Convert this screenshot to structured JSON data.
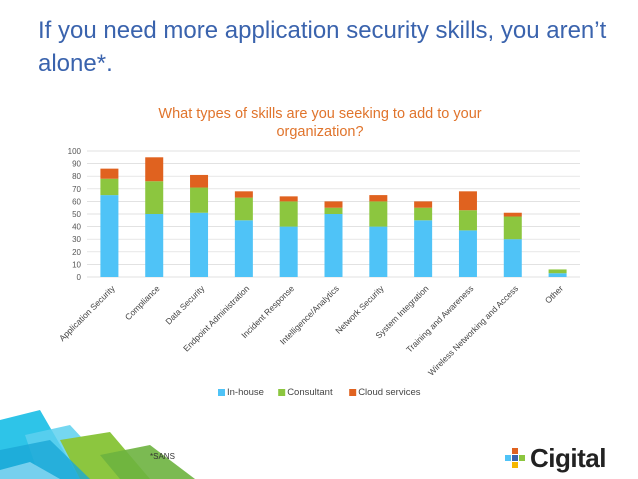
{
  "slide": {
    "title": "If you need more application security skills, you aren’t alone*.",
    "footnote": "*SANS",
    "brand": "Cigital"
  },
  "colors": {
    "title": "#3a63ad",
    "chart_title": "#e0742c",
    "in_house": "#4fc3f7",
    "consultant": "#8cc63f",
    "cloud": "#e0621f",
    "gridline": "#d9d9d9"
  },
  "chart_data": {
    "type": "bar",
    "stacked": true,
    "title": "What types of skills are you seeking to add to your organization?",
    "categories": [
      "Application Security",
      "Compliance",
      "Data Security",
      "Endpoint Administration",
      "Incident Response",
      "Intelligence/Analytics",
      "Network Security",
      "System Integration",
      "Training and Awareness",
      "Wireless Networking and Access",
      "Other"
    ],
    "series": [
      {
        "name": "In-house",
        "color": "#4fc3f7",
        "values": [
          65,
          50,
          51,
          45,
          40,
          50,
          40,
          45,
          37,
          30,
          3
        ]
      },
      {
        "name": "Consultant",
        "color": "#8cc63f",
        "values": [
          13,
          26,
          20,
          18,
          20,
          5,
          20,
          10,
          16,
          18,
          3
        ]
      },
      {
        "name": "Cloud services",
        "color": "#e0621f",
        "values": [
          8,
          19,
          10,
          5,
          4,
          5,
          5,
          5,
          15,
          3,
          0
        ]
      }
    ],
    "ylim": [
      0,
      100
    ],
    "yticks": [
      0,
      10,
      20,
      30,
      40,
      50,
      60,
      70,
      80,
      90,
      100
    ],
    "grid": true,
    "legend_position": "bottom"
  }
}
